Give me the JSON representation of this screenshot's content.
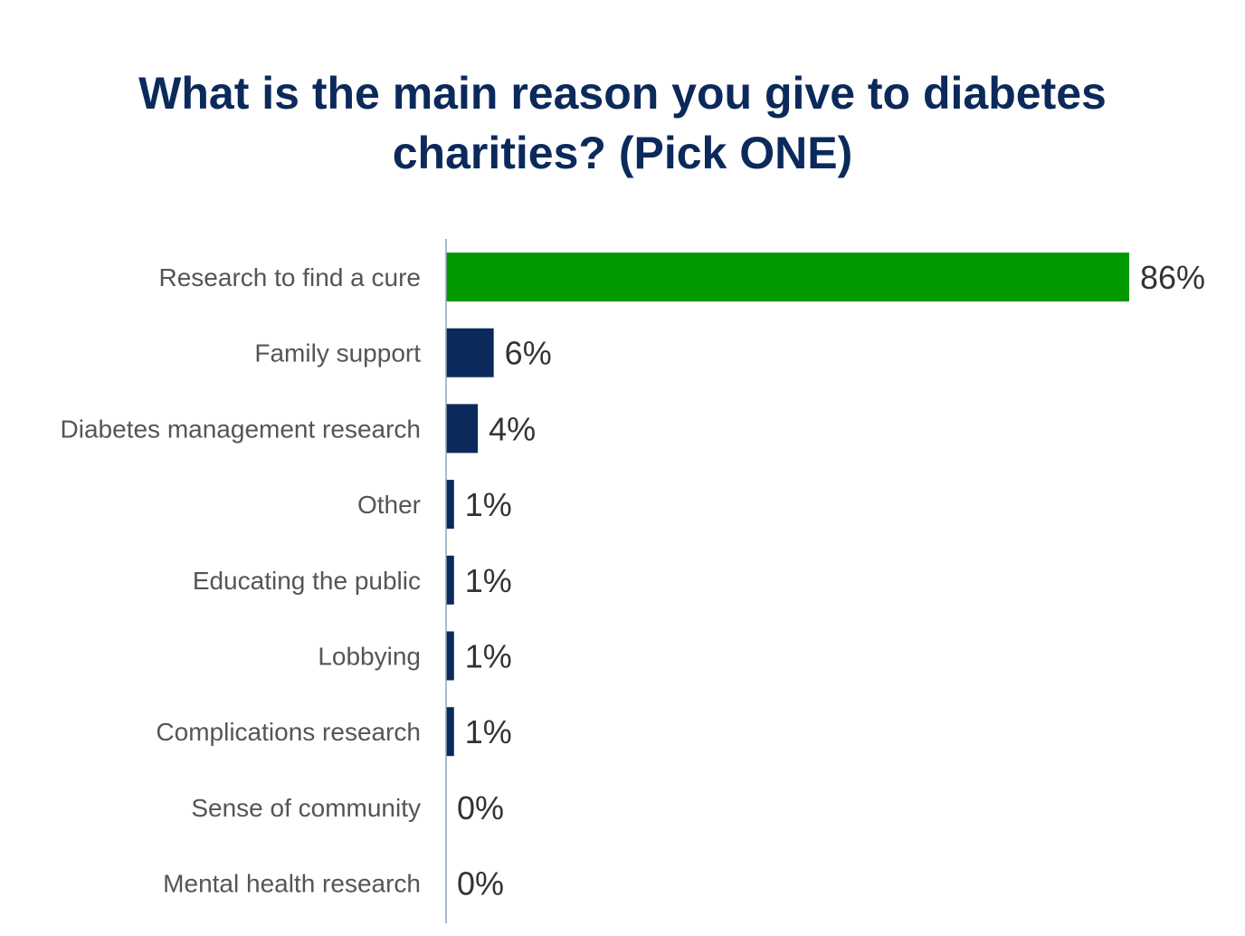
{
  "title_line1": "What is the main reason you give to diabetes",
  "title_line2": "charities? (Pick ONE)",
  "chart_data": {
    "type": "bar",
    "orientation": "horizontal",
    "title": "What is the main reason you give to diabetes charities? (Pick ONE)",
    "categories": [
      "Research to find a cure",
      "Family support",
      "Diabetes management research",
      "Other",
      "Educating the public",
      "Lobbying",
      "Complications research",
      "Sense of community",
      "Mental health research"
    ],
    "values": [
      86,
      6,
      4,
      1,
      1,
      1,
      1,
      0,
      0
    ],
    "value_labels": [
      "86%",
      "6%",
      "4%",
      "1%",
      "1%",
      "1%",
      "1%",
      "0%",
      "0%"
    ],
    "highlight_index": 0,
    "colors": {
      "highlight": "#009900",
      "default": "#0b2a5b",
      "axis": "#8fa3bf"
    },
    "xlim": [
      0,
      86
    ],
    "grid": false,
    "legend": false
  }
}
